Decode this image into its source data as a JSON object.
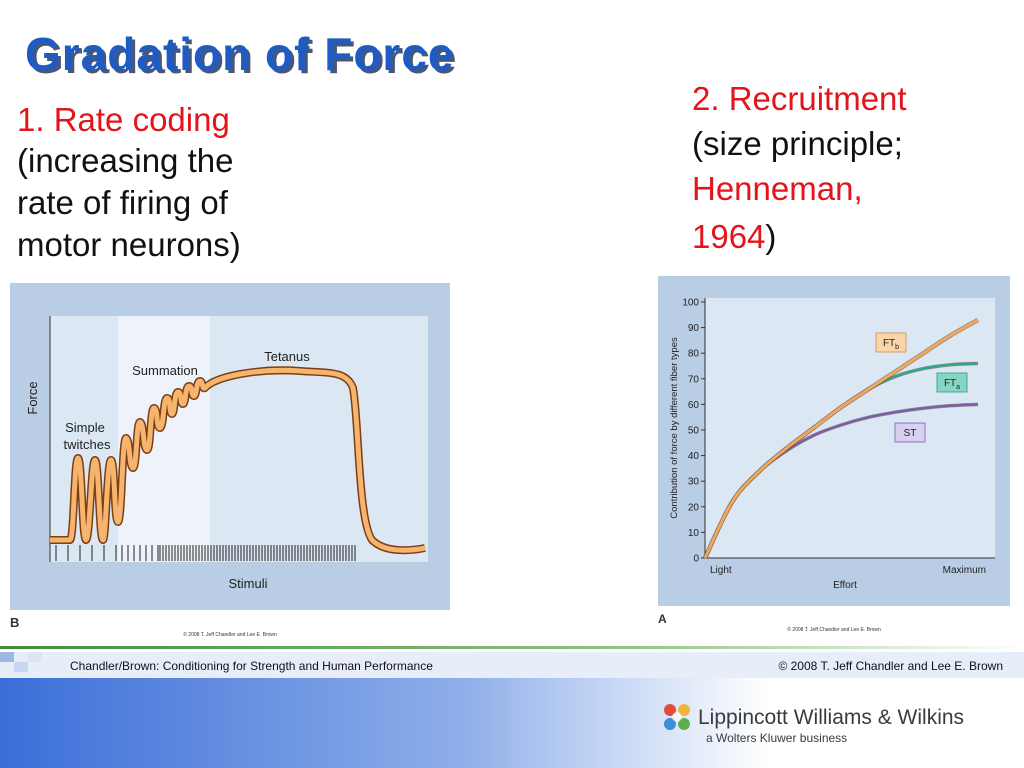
{
  "slide": {
    "title": "Gradation of Force",
    "left_text": {
      "heading": "1. Rate coding",
      "lines": [
        "(increasing the",
        "rate of firing of",
        "motor neurons)"
      ]
    },
    "right_text": {
      "heading": "2. Recruitment",
      "line2": "(size principle;",
      "author": "Henneman,",
      "year": "1964",
      "close": ")"
    },
    "footer": {
      "left": "Chandler/Brown: Conditioning for Strength and Human Performance",
      "right": "© 2008 T. Jeff Chandler and Lee E. Brown"
    },
    "logo": {
      "name": "Lippincott Williams & Wilkins",
      "tagline": "a Wolters Kluwer business"
    }
  },
  "figure_b": {
    "letter": "B",
    "y_label": "Force",
    "x_label": "Stimuli",
    "labels": {
      "simple_1": "Simple",
      "simple_2": "twitches",
      "summation": "Summation",
      "tetanus": "Tetanus"
    },
    "copyright": "© 2008 T. Jeff Chandler and Lee E. Brown"
  },
  "chart_data": {
    "type": "line",
    "letter": "A",
    "copyright": "© 2008 T. Jeff Chandler and Lee E. Brown",
    "y_label": "Contribution of force by different fiber types",
    "x_label": "Effort",
    "categories": [
      "Light",
      null,
      null,
      null,
      null,
      null,
      null,
      null,
      null,
      null,
      "Maximum"
    ],
    "ylim": [
      0,
      100
    ],
    "yticks": [
      0,
      10,
      20,
      30,
      40,
      50,
      60,
      70,
      80,
      90,
      100
    ],
    "series": [
      {
        "name": "ST",
        "color": "#7a5cb0",
        "values": [
          0,
          22,
          34,
          42,
          48,
          52,
          55,
          57,
          58.5,
          59.5,
          60
        ]
      },
      {
        "name": "FT",
        "subscript": "a",
        "color": "#2aa98f",
        "values": [
          0,
          22,
          34,
          43,
          51,
          59,
          66,
          71,
          74,
          75.5,
          76
        ]
      },
      {
        "name": "FT",
        "subscript": "b",
        "color": "#f0a860",
        "values": [
          0,
          22,
          34,
          43,
          51,
          59,
          66,
          73,
          80,
          87,
          93
        ]
      }
    ]
  }
}
